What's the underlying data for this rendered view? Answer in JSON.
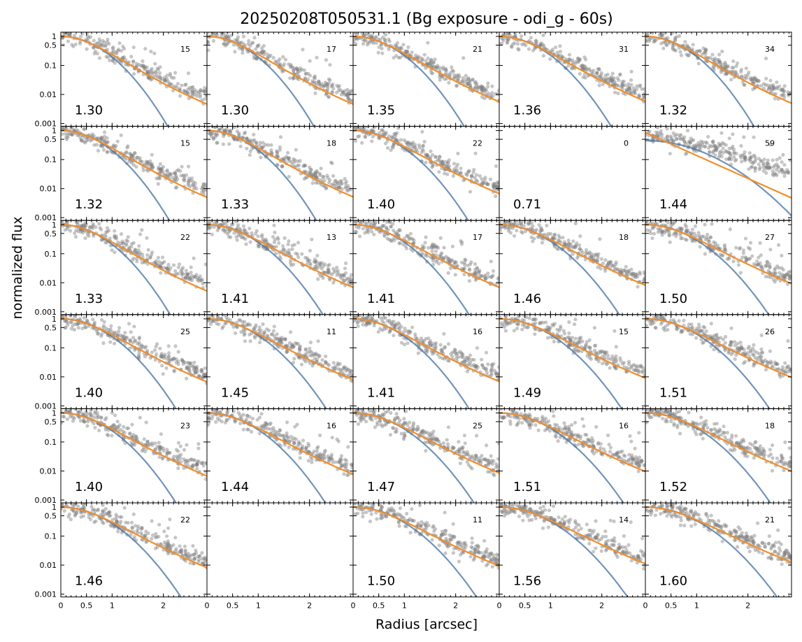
{
  "chart_data": {
    "type": "scatter",
    "title": "20250208T050531.1 (Bg exposure - odi_g - 60s)",
    "xlabel": "Radius [arcsec]",
    "ylabel": "normalized flux",
    "xlim": [
      0,
      2.85
    ],
    "ylim": [
      0.0008,
      1.4
    ],
    "yscale": "log",
    "grid": false,
    "rows": 6,
    "cols": 5,
    "x_ticks": [
      "0",
      "0.5",
      "1",
      "2"
    ],
    "x_tick_values": [
      0,
      0.5,
      1,
      2
    ],
    "y_ticks": [
      "1",
      "0.5",
      "0.1",
      "0.01",
      "0.001"
    ],
    "y_tick_values": [
      1,
      0.5,
      0.1,
      0.01,
      0.001
    ],
    "colors": {
      "points": "#808080",
      "fit_orange": "#f28e2b",
      "fit_blue": "#4e79a7"
    },
    "panels": [
      {
        "row": 0,
        "col": 0,
        "fwhm": "1.30",
        "count": "15",
        "empty": false
      },
      {
        "row": 0,
        "col": 1,
        "fwhm": "1.30",
        "count": "17",
        "empty": false
      },
      {
        "row": 0,
        "col": 2,
        "fwhm": "1.35",
        "count": "21",
        "empty": false
      },
      {
        "row": 0,
        "col": 3,
        "fwhm": "1.36",
        "count": "31",
        "empty": false
      },
      {
        "row": 0,
        "col": 4,
        "fwhm": "1.32",
        "count": "34",
        "empty": false
      },
      {
        "row": 1,
        "col": 0,
        "fwhm": "1.32",
        "count": "15",
        "empty": false
      },
      {
        "row": 1,
        "col": 1,
        "fwhm": "1.33",
        "count": "18",
        "empty": false
      },
      {
        "row": 1,
        "col": 2,
        "fwhm": "1.40",
        "count": "22",
        "empty": false
      },
      {
        "row": 1,
        "col": 3,
        "fwhm": "0.71",
        "count": "0",
        "empty": true
      },
      {
        "row": 1,
        "col": 4,
        "fwhm": "1.44",
        "count": "59",
        "empty": false,
        "anomalous": true
      },
      {
        "row": 2,
        "col": 0,
        "fwhm": "1.33",
        "count": "22",
        "empty": false
      },
      {
        "row": 2,
        "col": 1,
        "fwhm": "1.41",
        "count": "13",
        "empty": false
      },
      {
        "row": 2,
        "col": 2,
        "fwhm": "1.41",
        "count": "17",
        "empty": false
      },
      {
        "row": 2,
        "col": 3,
        "fwhm": "1.46",
        "count": "18",
        "empty": false
      },
      {
        "row": 2,
        "col": 4,
        "fwhm": "1.50",
        "count": "27",
        "empty": false
      },
      {
        "row": 3,
        "col": 0,
        "fwhm": "1.40",
        "count": "25",
        "empty": false
      },
      {
        "row": 3,
        "col": 1,
        "fwhm": "1.45",
        "count": "11",
        "empty": false
      },
      {
        "row": 3,
        "col": 2,
        "fwhm": "1.41",
        "count": "16",
        "empty": false
      },
      {
        "row": 3,
        "col": 3,
        "fwhm": "1.49",
        "count": "15",
        "empty": false
      },
      {
        "row": 3,
        "col": 4,
        "fwhm": "1.51",
        "count": "26",
        "empty": false
      },
      {
        "row": 4,
        "col": 0,
        "fwhm": "1.40",
        "count": "23",
        "empty": false
      },
      {
        "row": 4,
        "col": 1,
        "fwhm": "1.44",
        "count": "16",
        "empty": false
      },
      {
        "row": 4,
        "col": 2,
        "fwhm": "1.47",
        "count": "25",
        "empty": false
      },
      {
        "row": 4,
        "col": 3,
        "fwhm": "1.51",
        "count": "16",
        "empty": false
      },
      {
        "row": 4,
        "col": 4,
        "fwhm": "1.52",
        "count": "18",
        "empty": false
      },
      {
        "row": 5,
        "col": 0,
        "fwhm": "1.46",
        "count": "22",
        "empty": false
      },
      {
        "row": 5,
        "col": 1,
        "fwhm": "",
        "count": "",
        "empty": true,
        "blank": true
      },
      {
        "row": 5,
        "col": 2,
        "fwhm": "1.50",
        "count": "11",
        "empty": false
      },
      {
        "row": 5,
        "col": 3,
        "fwhm": "1.56",
        "count": "14",
        "empty": false
      },
      {
        "row": 5,
        "col": 4,
        "fwhm": "1.60",
        "count": "21",
        "empty": false
      }
    ]
  }
}
